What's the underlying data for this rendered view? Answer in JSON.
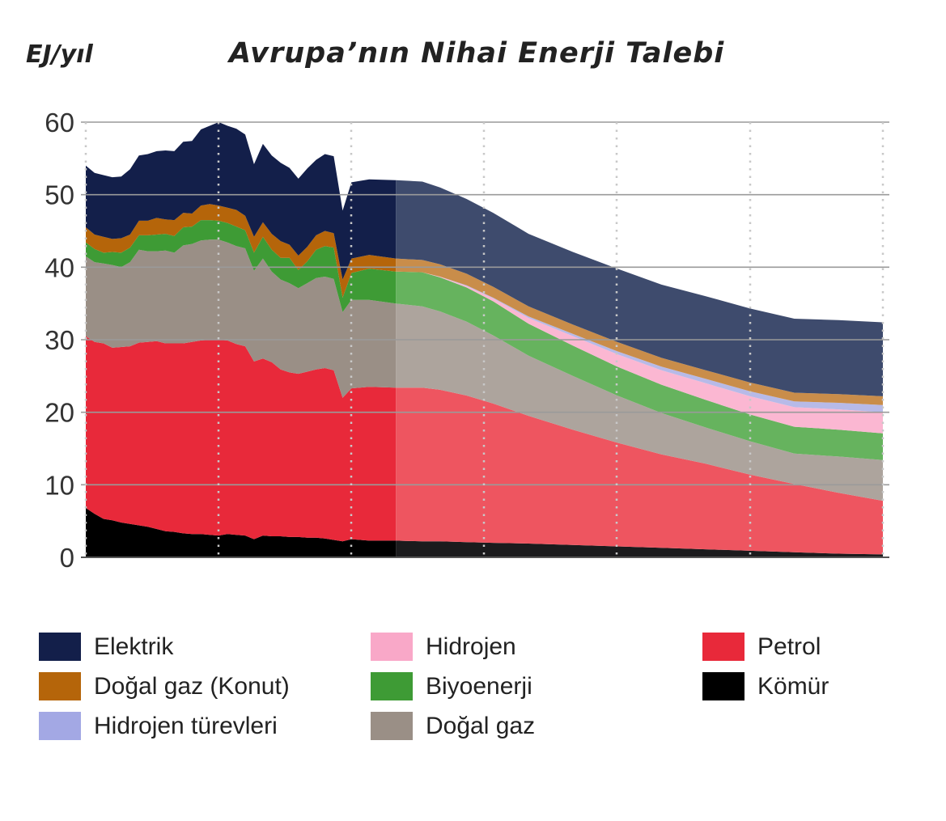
{
  "header": {
    "unit": "EJ/yıl",
    "title": "Avrupa’nın Nihai Enerji Talebi"
  },
  "chart_data": {
    "type": "area",
    "stacked": true,
    "title": "Avrupa’nın Nihai Enerji Talebi",
    "ylabel": "EJ/yıl",
    "xlabel": "",
    "ylim": [
      0,
      60
    ],
    "yticks": [
      "0",
      "10",
      "20",
      "30",
      "40",
      "50",
      "60"
    ],
    "grid": true,
    "x": [
      0,
      1,
      2,
      3,
      4,
      5,
      6,
      7,
      8,
      9,
      10,
      11,
      12,
      13,
      14,
      15,
      16,
      17,
      18,
      19,
      20,
      21,
      22,
      23,
      24,
      25,
      26,
      27,
      28,
      29,
      30,
      32,
      35,
      38,
      40,
      43,
      46,
      50,
      55,
      60,
      65,
      70,
      75,
      80,
      85,
      90
    ],
    "projection_start_index": 32,
    "series": [
      {
        "name": "Kömür",
        "color": "#000000",
        "values": [
          6.8,
          6.0,
          5.3,
          5.1,
          4.8,
          4.6,
          4.4,
          4.2,
          3.9,
          3.6,
          3.5,
          3.3,
          3.2,
          3.2,
          3.1,
          3.0,
          3.2,
          3.1,
          3.0,
          2.5,
          3.0,
          2.9,
          2.9,
          2.8,
          2.8,
          2.7,
          2.7,
          2.6,
          2.4,
          2.2,
          2.5,
          2.3,
          2.3,
          2.2,
          2.2,
          2.1,
          2.0,
          1.9,
          1.7,
          1.5,
          1.3,
          1.1,
          0.9,
          0.7,
          0.5,
          0.4
        ]
      },
      {
        "name": "Petrol",
        "color": "#e8293a",
        "values": [
          23.7,
          23.7,
          24.2,
          23.8,
          24.2,
          24.5,
          25.2,
          25.5,
          25.9,
          25.9,
          26.0,
          26.2,
          26.5,
          26.7,
          26.9,
          27.0,
          26.7,
          26.3,
          26.1,
          24.5,
          24.4,
          24.0,
          23.0,
          22.7,
          22.5,
          22.9,
          23.2,
          23.5,
          23.4,
          19.8,
          20.8,
          21.2,
          21.1,
          21.2,
          20.9,
          20.2,
          19.2,
          17.6,
          15.9,
          14.3,
          12.9,
          11.8,
          10.5,
          9.4,
          8.4,
          7.4
        ]
      },
      {
        "name": "Doğal gaz",
        "color": "#9a8f86",
        "values": [
          11.0,
          11.0,
          11.0,
          11.4,
          11.0,
          11.6,
          12.8,
          12.5,
          12.4,
          12.8,
          12.5,
          13.5,
          13.5,
          13.8,
          13.8,
          13.8,
          13.5,
          13.5,
          13.5,
          12.5,
          13.8,
          12.5,
          12.4,
          12.3,
          11.8,
          12.2,
          12.6,
          12.6,
          12.6,
          11.8,
          12.2,
          12.0,
          11.6,
          11.2,
          10.8,
          10.2,
          9.4,
          8.3,
          7.4,
          6.5,
          5.7,
          5.0,
          4.6,
          4.2,
          5.0,
          5.6
        ]
      },
      {
        "name": "Biyoenerji",
        "color": "#3e9b35",
        "values": [
          1.9,
          1.8,
          1.5,
          1.8,
          2.0,
          2.0,
          2.0,
          2.2,
          2.3,
          2.3,
          2.3,
          2.5,
          2.4,
          2.8,
          2.7,
          2.6,
          2.7,
          2.7,
          2.5,
          2.5,
          3.0,
          3.0,
          3.0,
          3.5,
          2.5,
          3.0,
          3.9,
          4.2,
          4.3,
          2.0,
          3.7,
          4.3,
          4.4,
          4.7,
          4.7,
          4.7,
          4.7,
          4.4,
          4.2,
          4.0,
          3.9,
          3.8,
          3.7,
          3.7,
          3.7,
          3.7
        ]
      },
      {
        "name": "Hidrojen",
        "color": "#f9a8c8",
        "values": [
          0,
          0,
          0,
          0,
          0,
          0,
          0,
          0,
          0,
          0,
          0,
          0,
          0,
          0,
          0,
          0,
          0,
          0,
          0,
          0,
          0,
          0,
          0,
          0,
          0,
          0,
          0,
          0,
          0,
          0,
          0,
          0,
          0,
          0,
          0.1,
          0.2,
          0.4,
          0.8,
          1.3,
          1.7,
          2.0,
          2.3,
          2.5,
          2.7,
          2.8,
          2.9
        ]
      },
      {
        "name": "Hidrojen türevleri",
        "color": "#a3a8e4",
        "values": [
          0,
          0,
          0,
          0,
          0,
          0,
          0,
          0,
          0,
          0,
          0,
          0,
          0,
          0,
          0,
          0,
          0,
          0,
          0,
          0,
          0,
          0,
          0,
          0,
          0,
          0,
          0,
          0,
          0,
          0,
          0,
          0,
          0,
          0,
          0,
          0.1,
          0.1,
          0.2,
          0.3,
          0.4,
          0.5,
          0.6,
          0.7,
          0.8,
          0.9,
          1.0
        ]
      },
      {
        "name": "Doğal gaz (Konut)",
        "color": "#b5650a",
        "values": [
          2.1,
          2.0,
          2.2,
          1.8,
          2.0,
          1.8,
          2.0,
          2.0,
          2.3,
          2.0,
          2.2,
          2.0,
          1.8,
          2.0,
          2.2,
          2.1,
          2.1,
          2.3,
          2.0,
          2.2,
          2.0,
          2.2,
          2.3,
          1.8,
          2.0,
          2.0,
          2.0,
          2.1,
          2.0,
          2.5,
          2.0,
          1.9,
          1.8,
          1.7,
          1.7,
          1.6,
          1.5,
          1.4,
          1.3,
          1.3,
          1.2,
          1.2,
          1.2,
          1.2,
          1.2,
          1.2
        ]
      },
      {
        "name": "Elektrik",
        "color": "#131f4a",
        "values": [
          8.5,
          8.5,
          8.5,
          8.5,
          8.5,
          9.0,
          9.0,
          9.2,
          9.2,
          9.5,
          9.5,
          9.8,
          10.0,
          10.5,
          10.8,
          11.5,
          11.3,
          11.2,
          11.2,
          10.0,
          10.8,
          10.8,
          10.8,
          10.6,
          10.6,
          10.8,
          10.4,
          10.6,
          10.6,
          9.5,
          10.5,
          10.4,
          10.8,
          10.8,
          10.6,
          10.3,
          10.2,
          10.0,
          10.0,
          10.1,
          10.1,
          10.2,
          10.2,
          10.2,
          10.2,
          10.2
        ]
      }
    ],
    "projection_colors": {
      "Kömür": "#1b1b1d",
      "Petrol": "#ee5560",
      "Doğal gaz": "#ada49d",
      "Biyoenerji": "#66b35e",
      "Hidrojen": "#fbb7d2",
      "Hidrojen türevleri": "#b7bae8",
      "Doğal gaz (Konut)": "#c98d4a",
      "Elektrik": "#3e4b6d"
    },
    "legend": {
      "placement": "bottom",
      "columns": [
        [
          "Elektrik",
          "Doğal gaz (Konut)",
          "Hidrojen türevleri"
        ],
        [
          "Hidrojen",
          "Biyoenerji",
          "Doğal gaz"
        ],
        [
          "Petrol",
          "Kömür"
        ]
      ]
    }
  }
}
